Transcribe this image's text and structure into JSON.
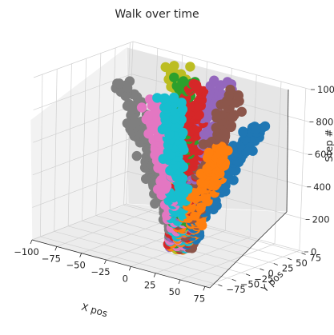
{
  "chart_data": {
    "type": "scatter",
    "projection": "3d",
    "title": "Walk over time",
    "xlabel": "X pos",
    "ylabel": "Y pos",
    "zlabel": "Step #",
    "xlim": [
      -100,
      80
    ],
    "ylim": [
      -90,
      80
    ],
    "zlim": [
      0,
      1000
    ],
    "x_ticks": [
      -100,
      -75,
      -50,
      -25,
      0,
      25,
      50,
      75
    ],
    "y_ticks": [
      -75,
      -50,
      -25,
      0,
      25,
      50,
      75
    ],
    "z_ticks": [
      0,
      200,
      400,
      600,
      800,
      1000
    ],
    "x_tick_labels": [
      "−100",
      "−75",
      "−50",
      "−25",
      "0",
      "25",
      "50",
      "75"
    ],
    "y_tick_labels": [
      "−75",
      "−50",
      "−25",
      "0",
      "25",
      "50",
      "75"
    ],
    "z_tick_labels": [
      "0",
      "200",
      "400",
      "600",
      "800",
      "1000"
    ],
    "grid": true,
    "series_colors": [
      "#1f77b4",
      "#ff7f0e",
      "#2ca02c",
      "#d62728",
      "#9467bd",
      "#8c564b",
      "#e377c2",
      "#7f7f7f",
      "#bcbd22",
      "#17becf"
    ],
    "series": [
      {
        "start": [
          0,
          0,
          0
        ],
        "end": [
          55,
          30,
          800
        ],
        "steps": 1000
      },
      {
        "start": [
          0,
          0,
          0
        ],
        "end": [
          45,
          -10,
          700
        ],
        "steps": 1000
      },
      {
        "start": [
          0,
          0,
          0
        ],
        "end": [
          -10,
          20,
          1000
        ],
        "steps": 1000
      },
      {
        "start": [
          0,
          0,
          0
        ],
        "end": [
          5,
          10,
          1000
        ],
        "steps": 1000
      },
      {
        "start": [
          0,
          0,
          0
        ],
        "end": [
          15,
          40,
          1000
        ],
        "steps": 1000
      },
      {
        "start": [
          0,
          0,
          0
        ],
        "end": [
          40,
          20,
          1000
        ],
        "steps": 1000
      },
      {
        "start": [
          0,
          0,
          0
        ],
        "end": [
          -20,
          -20,
          900
        ],
        "steps": 1000
      },
      {
        "start": [
          0,
          0,
          0
        ],
        "end": [
          -90,
          50,
          800
        ],
        "steps": 1000
      },
      {
        "start": [
          0,
          0,
          0
        ],
        "end": [
          -35,
          45,
          1000
        ],
        "steps": 1000
      },
      {
        "start": [
          0,
          0,
          0
        ],
        "end": [
          10,
          -45,
          1000
        ],
        "steps": 1000
      }
    ]
  }
}
